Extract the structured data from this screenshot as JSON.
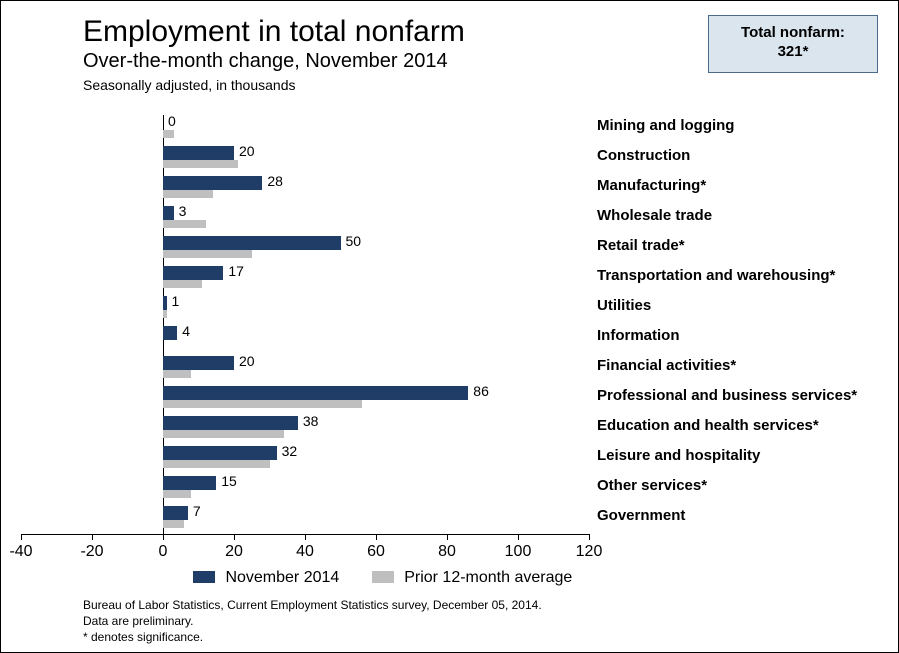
{
  "title": "Employment in total nonfarm",
  "subtitle": "Over-the-month change, November 2014",
  "note_sa": "Seasonally adjusted, in thousands",
  "callout": {
    "line1": "Total nonfarm:",
    "line2": "321*"
  },
  "chart": {
    "type": "bar",
    "orientation": "horizontal",
    "background_color": "#ffffff",
    "axis_color": "#000000",
    "xlim": [
      -40,
      120
    ],
    "xtick_step": 20,
    "xticks": [
      -40,
      -20,
      0,
      20,
      40,
      60,
      80,
      100,
      120
    ],
    "bar_row_height": 30,
    "primary_bar_height": 14,
    "secondary_bar_height": 8,
    "series": [
      {
        "name": "November 2014",
        "color": "#1f3d66"
      },
      {
        "name": "Prior 12-month average",
        "color": "#bfbfbf"
      }
    ],
    "categories": [
      {
        "label": "Mining and logging",
        "primary": 0,
        "secondary": 3,
        "show_value": "0"
      },
      {
        "label": "Construction",
        "primary": 20,
        "secondary": 21,
        "show_value": "20"
      },
      {
        "label": "Manufacturing*",
        "primary": 28,
        "secondary": 14,
        "show_value": "28"
      },
      {
        "label": "Wholesale trade",
        "primary": 3,
        "secondary": 12,
        "show_value": "3"
      },
      {
        "label": "Retail trade*",
        "primary": 50,
        "secondary": 25,
        "show_value": "50"
      },
      {
        "label": "Transportation and warehousing*",
        "primary": 17,
        "secondary": 11,
        "show_value": "17"
      },
      {
        "label": "Utilities",
        "primary": 1,
        "secondary": 1,
        "show_value": "1"
      },
      {
        "label": "Information",
        "primary": 4,
        "secondary": 0,
        "show_value": "4"
      },
      {
        "label": "Financial activities*",
        "primary": 20,
        "secondary": 8,
        "show_value": "20"
      },
      {
        "label": "Professional and business services*",
        "primary": 86,
        "secondary": 56,
        "show_value": "86"
      },
      {
        "label": "Education and health services*",
        "primary": 38,
        "secondary": 34,
        "show_value": "38"
      },
      {
        "label": "Leisure and hospitality",
        "primary": 32,
        "secondary": 30,
        "show_value": "32"
      },
      {
        "label": "Other services*",
        "primary": 15,
        "secondary": 8,
        "show_value": "15"
      },
      {
        "label": "Government",
        "primary": 7,
        "secondary": 6,
        "show_value": "7"
      }
    ]
  },
  "legend": {
    "items": [
      {
        "label": "November 2014",
        "color": "#1f3d66"
      },
      {
        "label": "Prior 12-month average",
        "color": "#bfbfbf"
      }
    ]
  },
  "footnotes": {
    "line1": "Bureau of Labor Statistics, Current Employment Statistics survey, December 05, 2014.",
    "line2": "Data are preliminary.",
    "line3": "* denotes significance."
  }
}
